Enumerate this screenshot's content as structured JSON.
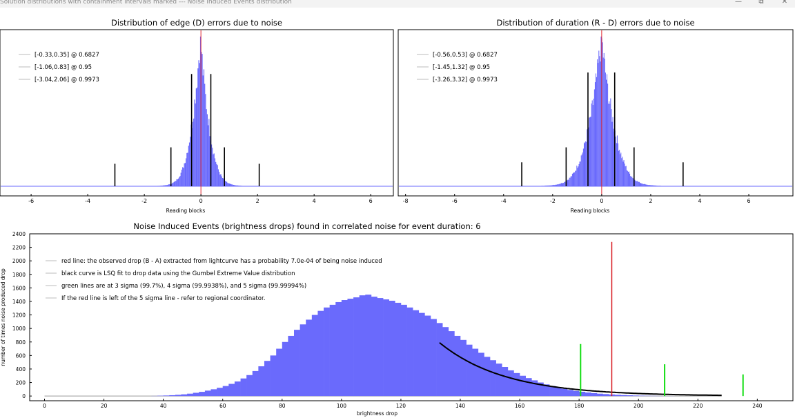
{
  "window": {
    "title": "Solution distributions with containment intervals marked --- Noise Induced Events distribution",
    "minimize_icon": "minimize-icon",
    "maximize_icon": "maximize-icon",
    "close_icon": "close-icon"
  },
  "chart_data": [
    {
      "id": "edge",
      "type": "bar",
      "title": "Distribution of edge (D) errors due to noise",
      "xlabel": "Reading blocks",
      "ylabel": "",
      "xlim": [
        -7.1,
        6.8
      ],
      "xticks": [
        -6,
        -4,
        -2,
        0,
        2,
        4,
        6
      ],
      "grid": false,
      "legend_position": "top-left",
      "histogram": {
        "center": -0.02,
        "sigma": 0.34,
        "peak": 1.0,
        "tail": 1.3,
        "range": [
          -4.2,
          3.6
        ]
      },
      "observed_line_x": 0,
      "interval_lines": [
        {
          "x": -0.33,
          "height": 0.75
        },
        {
          "x": 0.35,
          "height": 0.75
        },
        {
          "x": -1.06,
          "height": 0.26
        },
        {
          "x": 0.83,
          "height": 0.26
        },
        {
          "x": -3.04,
          "height": 0.15
        },
        {
          "x": 2.06,
          "height": 0.15
        }
      ],
      "legend": [
        "[-0.33,0.35] @ 0.6827",
        "[-1.06,0.83] @ 0.95",
        "[-3.04,2.06] @ 0.9973"
      ],
      "colors": {
        "bars": "#6a6afc",
        "observed": "#e2232b",
        "interval": "#000000"
      }
    },
    {
      "id": "duration",
      "type": "bar",
      "title": "Distribution of duration (R - D) errors due to noise",
      "xlabel": "Reading blocks",
      "ylabel": "",
      "xlim": [
        -8.3,
        7.8
      ],
      "xticks": [
        -8,
        -6,
        -4,
        -2,
        0,
        2,
        4,
        6
      ],
      "grid": false,
      "legend_position": "top-left",
      "histogram": {
        "center": -0.01,
        "sigma": 0.56,
        "peak": 1.0,
        "tail": 1.3,
        "range": [
          -5.5,
          5.5
        ]
      },
      "observed_line_x": 0,
      "interval_lines": [
        {
          "x": -0.56,
          "height": 0.76
        },
        {
          "x": 0.53,
          "height": 0.76
        },
        {
          "x": -1.45,
          "height": 0.26
        },
        {
          "x": 1.32,
          "height": 0.26
        },
        {
          "x": -3.26,
          "height": 0.16
        },
        {
          "x": 3.32,
          "height": 0.16
        }
      ],
      "legend": [
        "[-0.56,0.53] @ 0.6827",
        "[-1.45,1.32] @ 0.95",
        "[-3.26,3.32] @ 0.9973"
      ],
      "colors": {
        "bars": "#6a6afc",
        "observed": "#e2232b",
        "interval": "#000000"
      }
    },
    {
      "id": "noise-events",
      "type": "bar",
      "title": "Noise Induced Events (brightness drops) found in correlated noise for event duration: 6",
      "xlabel": "brightness drop",
      "ylabel": "number of times noise produced drop",
      "xlim": [
        -5,
        252
      ],
      "ylim": [
        -70,
        2400
      ],
      "xticks": [
        0,
        20,
        40,
        60,
        80,
        100,
        120,
        140,
        160,
        180,
        200,
        220,
        240
      ],
      "yticks": [
        0,
        200,
        400,
        600,
        800,
        1000,
        1200,
        1400,
        1600,
        1800,
        2000,
        2200,
        2400
      ],
      "grid": false,
      "legend_position": "top-left",
      "bin_width": 2,
      "bin_start": 36,
      "bin_values": [
        2,
        5,
        8,
        12,
        18,
        25,
        35,
        48,
        62,
        80,
        100,
        122,
        148,
        180,
        215,
        260,
        310,
        370,
        440,
        520,
        600,
        700,
        800,
        890,
        980,
        1060,
        1130,
        1200,
        1260,
        1310,
        1350,
        1390,
        1420,
        1440,
        1460,
        1490,
        1500,
        1470,
        1450,
        1430,
        1410,
        1380,
        1350,
        1310,
        1270,
        1230,
        1190,
        1140,
        1080,
        1020,
        960,
        890,
        830,
        760,
        700,
        640,
        580,
        530,
        480,
        430,
        380,
        340,
        300,
        265,
        232,
        200,
        172,
        148,
        126,
        107,
        90,
        76,
        63,
        52,
        43,
        35,
        29,
        23,
        18,
        14,
        11,
        8,
        6,
        4,
        3,
        2,
        1,
        1,
        0,
        0,
        0,
        0,
        0,
        0,
        0,
        0
      ],
      "fit_curve": {
        "x_start": 133,
        "x_end": 228,
        "y_start": 790,
        "decay": 22
      },
      "observed_line": {
        "x": 191,
        "y": 2280
      },
      "sigma_lines": [
        {
          "label": "3 sigma",
          "x": 180.5,
          "y": 770
        },
        {
          "label": "4 sigma",
          "x": 208.8,
          "y": 470
        },
        {
          "label": "5 sigma",
          "x": 235.2,
          "y": 320
        }
      ],
      "legend": [
        "red line: the observed drop (B - A) extracted from lightcurve has a probability 7.0e-04 of being noise induced",
        "black curve is LSQ fit to drop data using the Gumbel Extreme Value distribution",
        "green lines are at 3 sigma (99.7%), 4 sigma (99.9938%), and 5 sigma (99.99994%)",
        "If the red line is left of the 5 sigma line - refer to regional coordinator."
      ],
      "colors": {
        "bars": "#6a6afc",
        "observed": "#d8141c",
        "sigma": "#11dd11",
        "fit": "#000000"
      }
    }
  ]
}
